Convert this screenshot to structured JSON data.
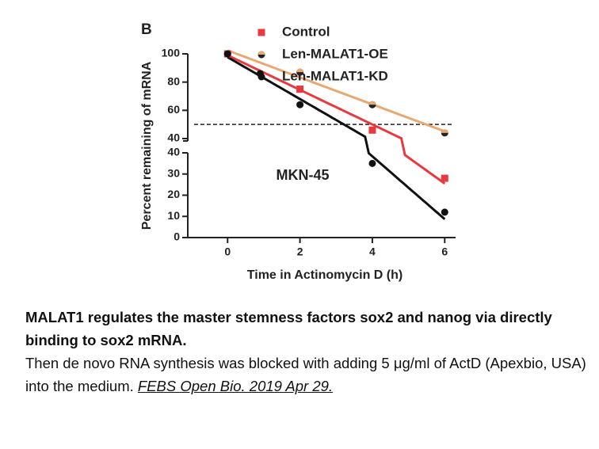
{
  "chart_data": {
    "type": "scatter",
    "panel_label": "B",
    "ylabel": "Percent remaining of mRNA",
    "xlabel": "Time in Actinomycin D (h)",
    "annotation": "MKN-45",
    "trendline": "linear",
    "hline": 50,
    "hline_style": "dashed",
    "xlim": [
      -1.1,
      6.3
    ],
    "xticks": [
      0,
      2,
      4,
      6
    ],
    "y_segments": [
      {
        "ylim": [
          0,
          40
        ],
        "yticks": [
          0,
          10,
          20,
          30,
          40
        ]
      },
      {
        "ylim": [
          40,
          100
        ],
        "yticks": [
          40,
          60,
          80,
          100
        ]
      }
    ],
    "series": [
      {
        "name": "Control",
        "color": "#e8393f",
        "marker": "square",
        "x": [
          0,
          2,
          4,
          6
        ],
        "values": [
          100,
          75,
          46,
          28
        ]
      },
      {
        "name": "Len-MALAT1-OE",
        "color": "#e8a872",
        "marker": "half-circle",
        "x": [
          0,
          2,
          4,
          6
        ],
        "values": [
          100,
          87,
          64,
          44
        ]
      },
      {
        "name": "Len-MALAT1-KD",
        "color": "#111111",
        "marker": "circle",
        "x": [
          0,
          0.9,
          2,
          4,
          6
        ],
        "values": [
          100,
          86,
          64,
          35,
          12
        ]
      }
    ]
  },
  "caption": {
    "title": "MALAT1 regulates the master stemness factors sox2 and nanog via directly binding to sox2 mRNA.",
    "body": "Then de novo RNA synthesis was blocked with adding 5 μg/ml of ActD (Apexbio, USA) into the medium.",
    "citation": "FEBS Open Bio. 2019 Apr 29."
  }
}
